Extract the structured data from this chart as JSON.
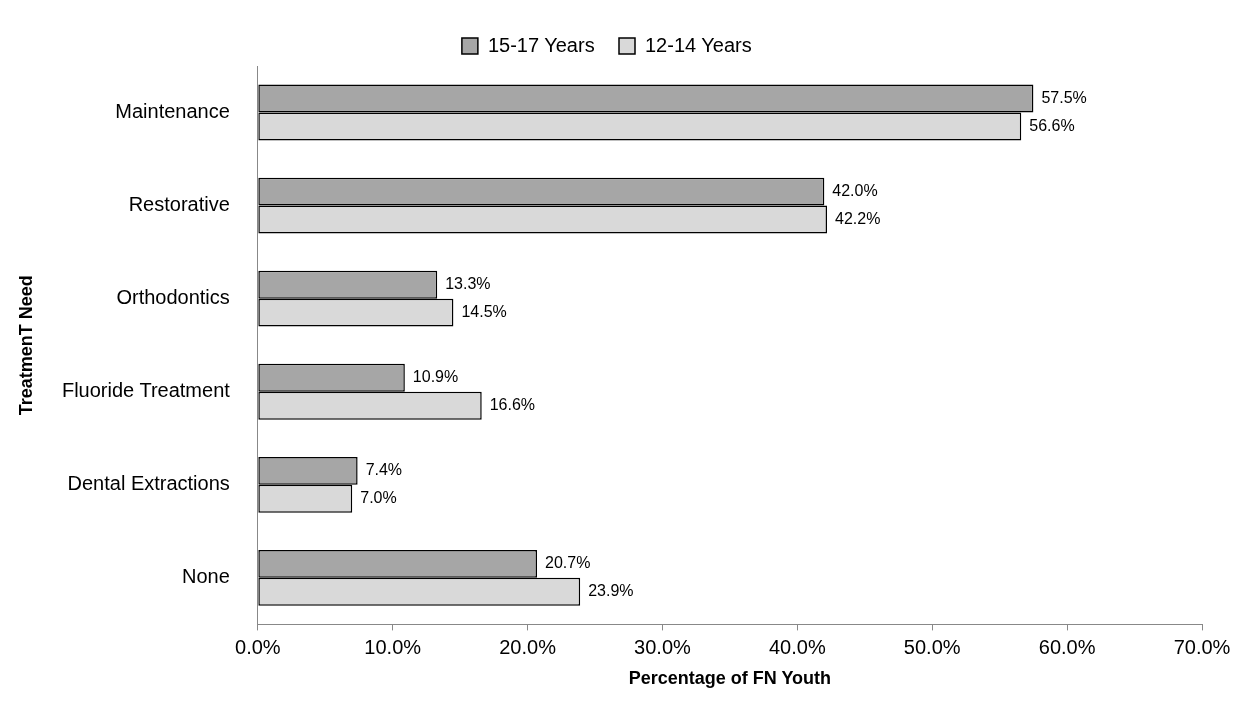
{
  "chart_data": {
    "type": "bar",
    "orientation": "horizontal",
    "categories": [
      "Maintenance",
      "Restorative",
      "Orthodontics",
      "Fluoride Treatment",
      "Dental Extractions",
      "None"
    ],
    "series": [
      {
        "name": "15-17 Years",
        "color": "#a6a6a6",
        "values": [
          57.5,
          42.0,
          13.3,
          10.9,
          7.4,
          20.7
        ],
        "value_labels": [
          "57.5%",
          "42.0%",
          "13.3%",
          "10.9%",
          "7.4%",
          "20.7%"
        ]
      },
      {
        "name": "12-14 Years",
        "color": "#d9d9d9",
        "values": [
          56.6,
          42.2,
          14.5,
          16.6,
          7.0,
          23.9
        ],
        "value_labels": [
          "56.6%",
          "42.2%",
          "14.5%",
          "16.6%",
          "7.0%",
          "23.9%"
        ]
      }
    ],
    "xlim": [
      0,
      70
    ],
    "xticks": [
      {
        "value": 0,
        "label": "0.0%"
      },
      {
        "value": 10,
        "label": "10.0%"
      },
      {
        "value": 20,
        "label": "20.0%"
      },
      {
        "value": 30,
        "label": "30.0%"
      },
      {
        "value": 40,
        "label": "40.0%"
      },
      {
        "value": 50,
        "label": "50.0%"
      },
      {
        "value": 60,
        "label": "60.0%"
      },
      {
        "value": 70,
        "label": "70.0%"
      }
    ],
    "xlabel": "Percentage of FN Youth",
    "ylabel": "TreatmenT Need",
    "legend": "top",
    "grid": false
  }
}
